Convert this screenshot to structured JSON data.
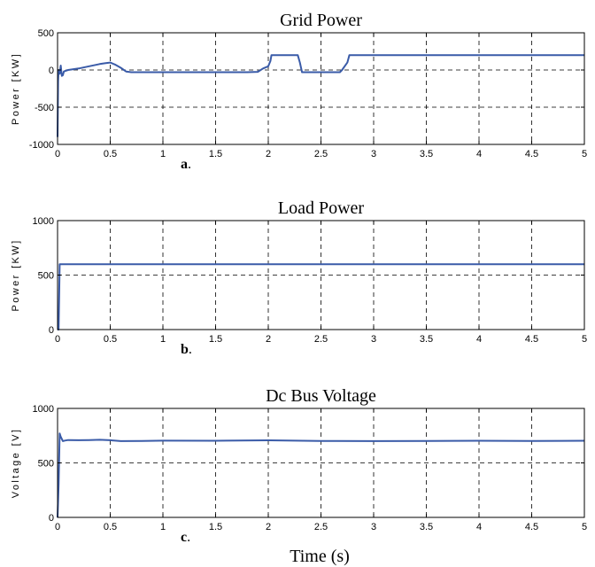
{
  "figure": {
    "xlabel": "Time (s)"
  },
  "chart_data": [
    {
      "type": "line",
      "title": "Grid Power",
      "panel_label": "a",
      "ylabel": "Power [KW]",
      "xlabel": "",
      "xlim": [
        0,
        5
      ],
      "ylim": [
        -1000,
        500
      ],
      "x_ticks": [
        0,
        0.5,
        1,
        1.5,
        2,
        2.5,
        3,
        3.5,
        4,
        4.5,
        5
      ],
      "y_ticks": [
        -1000,
        -500,
        0,
        500
      ],
      "grid": true,
      "color": "#3a5ba8",
      "series": [
        {
          "x": [
            0,
            0.005,
            0.01,
            0.02,
            0.03,
            0.04,
            0.05,
            0.06,
            0.08,
            0.1,
            0.2,
            0.3,
            0.4,
            0.45,
            0.5,
            0.55,
            0.6,
            0.65,
            0.7,
            0.8,
            1.0,
            1.5,
            1.8,
            1.9,
            1.95,
            2.0,
            2.02,
            2.03,
            2.05,
            2.2,
            2.28,
            2.3,
            2.32,
            2.5,
            2.68,
            2.7,
            2.75,
            2.77,
            2.8,
            3.5,
            4.5,
            5.0
          ],
          "y": [
            -900,
            -150,
            0,
            -50,
            60,
            -80,
            -70,
            -20,
            -10,
            0,
            20,
            50,
            80,
            90,
            100,
            70,
            30,
            -20,
            -30,
            -30,
            -30,
            -30,
            -30,
            -25,
            20,
            50,
            120,
            200,
            200,
            200,
            200,
            100,
            -30,
            -30,
            -30,
            0,
            100,
            200,
            200,
            200,
            200,
            200
          ]
        }
      ]
    },
    {
      "type": "line",
      "title": "Load Power",
      "panel_label": "b",
      "ylabel": "Power [KW]",
      "xlabel": "",
      "xlim": [
        0,
        5
      ],
      "ylim": [
        0,
        1000
      ],
      "x_ticks": [
        0,
        0.5,
        1,
        1.5,
        2,
        2.5,
        3,
        3.5,
        4,
        4.5,
        5
      ],
      "y_ticks": [
        0,
        500,
        1000
      ],
      "grid": true,
      "color": "#3a5ba8",
      "series": [
        {
          "x": [
            0,
            0.01,
            0.02,
            0.5,
            1,
            2,
            3,
            4,
            5
          ],
          "y": [
            0,
            0,
            600,
            600,
            600,
            600,
            600,
            600,
            600
          ]
        }
      ]
    },
    {
      "type": "line",
      "title": "Dc Bus Voltage",
      "panel_label": "c",
      "ylabel": "Voltage [V]",
      "xlabel": "Time (s)",
      "xlim": [
        0,
        5
      ],
      "ylim": [
        0,
        1000
      ],
      "x_ticks": [
        0,
        0.5,
        1,
        1.5,
        2,
        2.5,
        3,
        3.5,
        4,
        4.5,
        5
      ],
      "y_ticks": [
        0,
        500,
        1000
      ],
      "grid": true,
      "color": "#3a5ba8",
      "series": [
        {
          "x": [
            0,
            0.01,
            0.02,
            0.03,
            0.05,
            0.07,
            0.1,
            0.2,
            0.3,
            0.4,
            0.5,
            0.6,
            0.8,
            1.0,
            1.5,
            2.0,
            2.5,
            3.0,
            3.5,
            4.0,
            4.5,
            5.0
          ],
          "y": [
            0,
            300,
            770,
            740,
            700,
            705,
            710,
            708,
            710,
            712,
            708,
            700,
            702,
            704,
            703,
            707,
            702,
            700,
            702,
            703,
            702,
            703
          ]
        }
      ]
    }
  ]
}
